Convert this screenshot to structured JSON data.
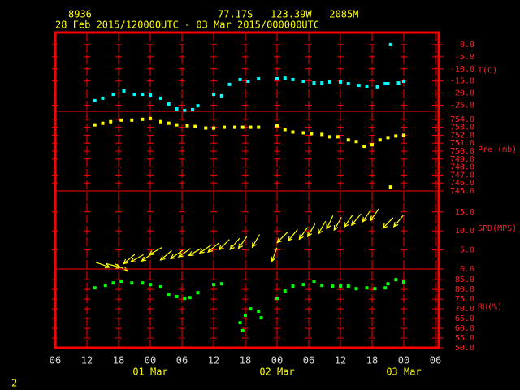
{
  "header": {
    "station": "8936",
    "location": "77.17S   123.39W   2085M",
    "period": "28 Feb 2015/120000UTC - 03 Mar 2015/000000UTC"
  },
  "page_number": "2",
  "chart_data": [
    {
      "type": "scatter",
      "ylabel": "T(C)",
      "color": "#00ffff",
      "xlim": [
        6,
        78
      ],
      "ylim": [
        -27.5,
        5
      ],
      "yticks": [
        {
          "value": 0,
          "label": "0.0"
        },
        {
          "value": -5,
          "label": "-5.0"
        },
        {
          "value": -10,
          "label": "-10.0"
        },
        {
          "value": -15,
          "label": "-15.0"
        },
        {
          "value": -20,
          "label": "-20.0"
        },
        {
          "value": -25,
          "label": "-25.0"
        }
      ],
      "x": [
        13.5,
        15,
        17,
        19,
        21,
        22.5,
        24,
        26,
        27.5,
        29,
        30.5,
        32,
        33,
        36,
        37.5,
        39,
        41,
        42.5,
        44.5,
        48,
        49.5,
        51,
        53,
        55,
        56.5,
        58,
        60,
        61.5,
        63.5,
        65,
        67,
        68.5,
        69,
        69.5,
        71,
        72
      ],
      "values": [
        -23.1,
        -22.1,
        -20.5,
        -19.1,
        -20.5,
        -20.5,
        -20.8,
        -22.1,
        -24.5,
        -26.5,
        -27.2,
        -26.8,
        -25.2,
        -20.5,
        -21.1,
        -16.4,
        -14.4,
        -15.1,
        -14.1,
        -14.1,
        -13.8,
        -14.4,
        -15.1,
        -15.8,
        -15.8,
        -15.4,
        -15.4,
        -16.1,
        -16.8,
        -17.1,
        -17.4,
        -16.1,
        -16.1,
        0,
        -15.8,
        -15.1
      ]
    },
    {
      "type": "scatter",
      "ylabel": "Pre (mb)",
      "color": "#ffff00",
      "xlim": [
        6,
        78
      ],
      "ylim": [
        745,
        755
      ],
      "yticks": [
        {
          "value": 754,
          "label": "754.0"
        },
        {
          "value": 753,
          "label": "753.0"
        },
        {
          "value": 752,
          "label": "752.0"
        },
        {
          "value": 751,
          "label": "751.0"
        },
        {
          "value": 750,
          "label": "750.0"
        },
        {
          "value": 749,
          "label": "749.0"
        },
        {
          "value": 748,
          "label": "748.0"
        },
        {
          "value": 747,
          "label": "747.0"
        },
        {
          "value": 746,
          "label": "746.0"
        },
        {
          "value": 745,
          "label": "745.0"
        }
      ],
      "x": [
        13.5,
        15,
        16.5,
        18.5,
        20.5,
        22.5,
        24,
        26,
        27.5,
        29,
        31,
        32.5,
        34.5,
        36,
        38,
        40,
        41.5,
        43,
        44.5,
        48,
        49.5,
        51,
        53,
        54.5,
        56.5,
        58,
        59.5,
        61.5,
        63,
        64.5,
        66,
        67.5,
        69,
        69.5,
        70.5,
        72
      ],
      "values": [
        753.3,
        753.5,
        753.7,
        753.9,
        753.9,
        754.0,
        754.1,
        753.7,
        753.5,
        753.3,
        753.2,
        753.1,
        752.9,
        752.9,
        753.0,
        753.0,
        753.0,
        753.0,
        753.0,
        753.2,
        752.7,
        752.4,
        752.3,
        752.2,
        752.1,
        751.8,
        751.8,
        751.4,
        751.2,
        750.6,
        750.8,
        751.4,
        751.7,
        745.5,
        751.9,
        752.0
      ]
    },
    {
      "type": "vector",
      "ylabel": "SPD(MPS)",
      "color": "#ffff00",
      "xlim": [
        6,
        78
      ],
      "ylim": [
        0,
        20.5
      ],
      "yticks": [
        {
          "value": 15,
          "label": "15.0"
        },
        {
          "value": 10,
          "label": "10.0"
        },
        {
          "value": 5,
          "label": "5.0"
        },
        {
          "value": 0,
          "label": "0.0"
        }
      ],
      "x": [
        15,
        17,
        18.5,
        20,
        21.5,
        23.5,
        25,
        27,
        29,
        30.5,
        32.5,
        34.5,
        36,
        38,
        40,
        41.5,
        44,
        47.5,
        49,
        51,
        53,
        54.5,
        56.5,
        58,
        59.5,
        61.5,
        63,
        65,
        66.5,
        69,
        71
      ],
      "values": [
        1.1,
        0.9,
        0.4,
        2.6,
        2.8,
        3.2,
        4.7,
        3.6,
        3.8,
        4.3,
        4.5,
        5.3,
        5.7,
        6.4,
        6.6,
        7.0,
        7.4,
        3.8,
        8.3,
        8.9,
        9.4,
        10.2,
        10.9,
        12.3,
        11.9,
        12.6,
        13.0,
        14.0,
        14.3,
        12.1,
        12.6
      ],
      "directions": [
        290,
        285,
        300,
        50,
        60,
        55,
        60,
        50,
        55,
        55,
        60,
        55,
        50,
        45,
        40,
        35,
        30,
        20,
        45,
        40,
        35,
        30,
        30,
        25,
        30,
        35,
        40,
        35,
        35,
        45,
        40
      ]
    },
    {
      "type": "scatter",
      "ylabel": "RH(%)",
      "color": "#00ff00",
      "xlim": [
        6,
        78
      ],
      "ylim": [
        50,
        90.5
      ],
      "yticks": [
        {
          "value": 85,
          "label": "85.0"
        },
        {
          "value": 80,
          "label": "80.0"
        },
        {
          "value": 75,
          "label": "75.0"
        },
        {
          "value": 70,
          "label": "70.0"
        },
        {
          "value": 65,
          "label": "65.0"
        },
        {
          "value": 60,
          "label": "60.0"
        },
        {
          "value": 55,
          "label": "55.0"
        },
        {
          "value": 50,
          "label": "50.0"
        }
      ],
      "x": [
        13.5,
        15.5,
        17,
        18.5,
        20.5,
        22.5,
        24,
        26,
        27.5,
        29,
        30.5,
        31.5,
        33,
        36,
        37.5,
        41,
        41.5,
        42,
        43,
        44.5,
        45,
        48,
        49.5,
        51,
        53,
        55,
        56.5,
        58.5,
        60,
        61.5,
        63,
        65,
        66.5,
        68.5,
        69,
        70.5,
        72
      ],
      "values": [
        80.8,
        82.1,
        83.3,
        84.2,
        83.3,
        83.3,
        82.5,
        81.3,
        77.5,
        76.3,
        75.4,
        75.8,
        78.3,
        82.5,
        82.9,
        62.9,
        58.8,
        66.7,
        70.0,
        68.8,
        65.4,
        75.4,
        79.2,
        81.7,
        82.5,
        84.2,
        82.1,
        81.7,
        81.7,
        81.7,
        80.4,
        80.8,
        80.4,
        80.8,
        82.9,
        85.0,
        83.8
      ],
      "xticks": [
        {
          "value": 6,
          "label": "06"
        },
        {
          "value": 12,
          "label": "12"
        },
        {
          "value": 18,
          "label": "18"
        },
        {
          "value": 24,
          "label": "00"
        },
        {
          "value": 30,
          "label": "06"
        },
        {
          "value": 36,
          "label": "12"
        },
        {
          "value": 42,
          "label": "18"
        },
        {
          "value": 48,
          "label": "00"
        },
        {
          "value": 54,
          "label": "06"
        },
        {
          "value": 60,
          "label": "12"
        },
        {
          "value": 66,
          "label": "18"
        },
        {
          "value": 72,
          "label": "00"
        },
        {
          "value": 78,
          "label": "06"
        }
      ],
      "date_labels": [
        {
          "value": 24,
          "label": "01 Mar"
        },
        {
          "value": 48,
          "label": "02 Mar"
        },
        {
          "value": 72,
          "label": "03 Mar"
        }
      ]
    }
  ]
}
